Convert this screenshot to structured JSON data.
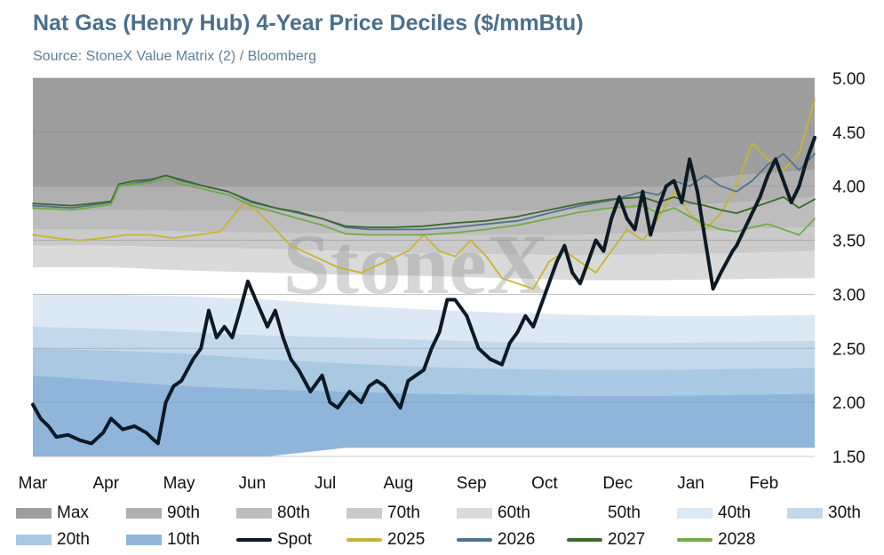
{
  "title": "Nat Gas (Henry Hub) 4-Year Price Deciles ($/mmBtu)",
  "subtitle": "Source: StoneX Value Matrix (2) / Bloomberg",
  "watermark": "StoneX",
  "chart_data": {
    "type": "area",
    "title": "Nat Gas (Henry Hub) 4-Year Price Deciles ($/mmBtu)",
    "subtitle": "Source: StoneX Value Matrix (2) / Bloomberg",
    "x_labels": [
      "Mar",
      "Apr",
      "May",
      "Jun",
      "Jul",
      "Aug",
      "Sep",
      "Oct",
      "Dec",
      "Jan",
      "Feb"
    ],
    "y_ticks": [
      "5.00",
      "4.50",
      "4.00",
      "3.50",
      "3.00",
      "2.50",
      "2.00",
      "1.50"
    ],
    "ylim": [
      1.5,
      5.0
    ],
    "y_axis_side": "right",
    "grid": true,
    "legend_position": "bottom",
    "t": [
      0,
      0.1,
      0.2,
      0.3,
      0.4,
      0.5,
      0.6,
      0.7,
      0.8,
      0.9,
      1.0
    ],
    "bands": [
      {
        "name": "Max",
        "color": "#9e9e9e",
        "upper": [
          5.0,
          5.0,
          5.0,
          5.0,
          5.0,
          5.0,
          5.0,
          5.0,
          5.0,
          5.0,
          5.0
        ],
        "lower": [
          4.0,
          4.0,
          4.0,
          4.0,
          4.0,
          4.0,
          4.0,
          4.0,
          4.0,
          4.1,
          4.15
        ]
      },
      {
        "name": "90th",
        "color": "#b0b0b0",
        "upper": [
          4.0,
          4.0,
          4.0,
          4.0,
          4.0,
          4.0,
          4.0,
          4.0,
          4.0,
          4.1,
          4.15
        ],
        "lower": [
          3.78,
          3.78,
          3.77,
          3.77,
          3.76,
          3.76,
          3.77,
          3.78,
          3.8,
          3.85,
          3.9
        ]
      },
      {
        "name": "80th",
        "color": "#bdbdbd",
        "upper": [
          3.78,
          3.78,
          3.77,
          3.77,
          3.76,
          3.76,
          3.77,
          3.78,
          3.8,
          3.85,
          3.9
        ],
        "lower": [
          3.6,
          3.6,
          3.58,
          3.57,
          3.56,
          3.55,
          3.55,
          3.55,
          3.57,
          3.6,
          3.62
        ]
      },
      {
        "name": "70th",
        "color": "#cacaca",
        "upper": [
          3.6,
          3.6,
          3.58,
          3.57,
          3.56,
          3.55,
          3.55,
          3.55,
          3.57,
          3.6,
          3.62
        ],
        "lower": [
          3.45,
          3.45,
          3.43,
          3.42,
          3.4,
          3.38,
          3.37,
          3.36,
          3.37,
          3.38,
          3.4
        ]
      },
      {
        "name": "60th",
        "color": "#dadada",
        "upper": [
          3.45,
          3.45,
          3.43,
          3.42,
          3.4,
          3.38,
          3.37,
          3.36,
          3.37,
          3.38,
          3.4
        ],
        "lower": [
          3.25,
          3.25,
          3.22,
          3.2,
          3.18,
          3.17,
          3.15,
          3.13,
          3.13,
          3.14,
          3.15
        ]
      },
      {
        "name": "50th",
        "color": "#ffffff",
        "upper": [
          3.25,
          3.25,
          3.22,
          3.2,
          3.18,
          3.17,
          3.15,
          3.13,
          3.13,
          3.14,
          3.15
        ],
        "lower": [
          3.0,
          3.0,
          2.98,
          2.95,
          2.9,
          2.86,
          2.83,
          2.81,
          2.8,
          2.8,
          2.81
        ]
      },
      {
        "name": "40th",
        "color": "#dce8f3",
        "upper": [
          3.0,
          3.0,
          2.98,
          2.95,
          2.9,
          2.86,
          2.83,
          2.81,
          2.8,
          2.8,
          2.81
        ],
        "lower": [
          2.7,
          2.68,
          2.65,
          2.62,
          2.6,
          2.58,
          2.56,
          2.55,
          2.55,
          2.56,
          2.57
        ]
      },
      {
        "name": "30th",
        "color": "#c3d8ea",
        "upper": [
          2.7,
          2.68,
          2.65,
          2.62,
          2.6,
          2.58,
          2.56,
          2.55,
          2.55,
          2.56,
          2.57
        ],
        "lower": [
          2.5,
          2.48,
          2.45,
          2.4,
          2.36,
          2.33,
          2.31,
          2.3,
          2.3,
          2.31,
          2.32
        ]
      },
      {
        "name": "20th",
        "color": "#a9c8e2",
        "upper": [
          2.5,
          2.48,
          2.45,
          2.4,
          2.36,
          2.33,
          2.31,
          2.3,
          2.3,
          2.31,
          2.32
        ],
        "lower": [
          2.25,
          2.2,
          2.15,
          2.12,
          2.1,
          2.08,
          2.07,
          2.06,
          2.06,
          2.07,
          2.08
        ]
      },
      {
        "name": "10th",
        "color": "#8fb6da",
        "upper": [
          2.25,
          2.2,
          2.15,
          2.12,
          2.1,
          2.08,
          2.07,
          2.06,
          2.06,
          2.07,
          2.08
        ],
        "lower": [
          1.5,
          1.5,
          1.5,
          1.5,
          1.58,
          1.58,
          1.58,
          1.58,
          1.58,
          1.58,
          1.58
        ]
      }
    ],
    "series": [
      {
        "name": "Spot",
        "color": "#0d1a26",
        "width": 4,
        "x": [
          0,
          0.01,
          0.02,
          0.03,
          0.045,
          0.06,
          0.075,
          0.09,
          0.1,
          0.115,
          0.13,
          0.145,
          0.155,
          0.16,
          0.17,
          0.18,
          0.19,
          0.205,
          0.215,
          0.225,
          0.235,
          0.245,
          0.255,
          0.265,
          0.275,
          0.285,
          0.3,
          0.31,
          0.32,
          0.33,
          0.34,
          0.355,
          0.37,
          0.38,
          0.39,
          0.405,
          0.42,
          0.43,
          0.44,
          0.45,
          0.46,
          0.47,
          0.48,
          0.5,
          0.51,
          0.52,
          0.53,
          0.54,
          0.555,
          0.57,
          0.585,
          0.6,
          0.61,
          0.62,
          0.63,
          0.64,
          0.65,
          0.66,
          0.67,
          0.68,
          0.69,
          0.7,
          0.71,
          0.72,
          0.73,
          0.74,
          0.75,
          0.76,
          0.77,
          0.78,
          0.79,
          0.8,
          0.81,
          0.82,
          0.83,
          0.84,
          0.85,
          0.86,
          0.87,
          0.88,
          0.895,
          0.9,
          0.91,
          0.92,
          0.93,
          0.94,
          0.95,
          0.96,
          0.97,
          0.98,
          0.99,
          1.0
        ],
        "y": [
          1.98,
          1.85,
          1.78,
          1.68,
          1.7,
          1.65,
          1.62,
          1.72,
          1.85,
          1.75,
          1.78,
          1.72,
          1.65,
          1.62,
          2.0,
          2.15,
          2.2,
          2.4,
          2.5,
          2.85,
          2.6,
          2.7,
          2.6,
          2.85,
          3.12,
          2.95,
          2.7,
          2.85,
          2.6,
          2.4,
          2.3,
          2.1,
          2.25,
          2.0,
          1.95,
          2.1,
          2.0,
          2.15,
          2.2,
          2.15,
          2.05,
          1.95,
          2.2,
          2.3,
          2.5,
          2.65,
          2.95,
          2.95,
          2.8,
          2.5,
          2.4,
          2.35,
          2.55,
          2.65,
          2.8,
          2.7,
          2.9,
          3.1,
          3.3,
          3.45,
          3.2,
          3.1,
          3.3,
          3.5,
          3.4,
          3.7,
          3.9,
          3.7,
          3.6,
          3.95,
          3.55,
          3.8,
          4.0,
          4.05,
          3.85,
          4.25,
          3.95,
          3.5,
          3.05,
          3.2,
          3.4,
          3.45,
          3.6,
          3.75,
          3.9,
          4.1,
          4.25,
          4.05,
          3.85,
          4.0,
          4.25,
          4.45
        ]
      },
      {
        "name": "2025",
        "color": "#c8b42e",
        "width": 1.8,
        "x": [
          0,
          0.03,
          0.06,
          0.09,
          0.12,
          0.15,
          0.18,
          0.21,
          0.24,
          0.27,
          0.29,
          0.31,
          0.33,
          0.36,
          0.39,
          0.42,
          0.45,
          0.48,
          0.5,
          0.52,
          0.54,
          0.56,
          0.58,
          0.6,
          0.62,
          0.64,
          0.66,
          0.68,
          0.7,
          0.72,
          0.74,
          0.76,
          0.78,
          0.8,
          0.82,
          0.84,
          0.86,
          0.88,
          0.9,
          0.92,
          0.94,
          0.96,
          0.98,
          1.0
        ],
        "y": [
          3.55,
          3.52,
          3.5,
          3.52,
          3.55,
          3.55,
          3.52,
          3.55,
          3.58,
          3.85,
          3.75,
          3.6,
          3.45,
          3.35,
          3.25,
          3.2,
          3.3,
          3.4,
          3.55,
          3.4,
          3.35,
          3.5,
          3.35,
          3.15,
          3.1,
          3.05,
          3.3,
          3.4,
          3.3,
          3.2,
          3.4,
          3.6,
          3.5,
          3.7,
          3.95,
          3.75,
          3.6,
          3.75,
          4.0,
          4.4,
          4.25,
          4.15,
          4.3,
          4.8
        ]
      },
      {
        "name": "2026",
        "color": "#4d7390",
        "width": 1.8,
        "x": [
          0,
          0.05,
          0.1,
          0.11,
          0.13,
          0.15,
          0.17,
          0.19,
          0.22,
          0.25,
          0.28,
          0.31,
          0.34,
          0.37,
          0.4,
          0.43,
          0.46,
          0.5,
          0.54,
          0.58,
          0.62,
          0.66,
          0.7,
          0.74,
          0.78,
          0.8,
          0.82,
          0.84,
          0.86,
          0.88,
          0.9,
          0.92,
          0.94,
          0.96,
          0.98,
          1.0
        ],
        "y": [
          3.82,
          3.8,
          3.85,
          4.0,
          4.03,
          4.05,
          4.1,
          4.05,
          4.0,
          3.95,
          3.85,
          3.8,
          3.75,
          3.7,
          3.62,
          3.6,
          3.6,
          3.6,
          3.62,
          3.65,
          3.68,
          3.75,
          3.82,
          3.87,
          3.95,
          3.92,
          4.05,
          4.0,
          4.1,
          4.0,
          3.95,
          4.05,
          4.2,
          4.3,
          4.15,
          4.3
        ]
      },
      {
        "name": "2027",
        "color": "#3c6a2a",
        "width": 1.8,
        "x": [
          0,
          0.05,
          0.1,
          0.11,
          0.13,
          0.15,
          0.17,
          0.19,
          0.22,
          0.25,
          0.28,
          0.31,
          0.34,
          0.37,
          0.4,
          0.43,
          0.46,
          0.5,
          0.54,
          0.58,
          0.62,
          0.66,
          0.7,
          0.74,
          0.78,
          0.8,
          0.82,
          0.84,
          0.86,
          0.88,
          0.9,
          0.92,
          0.94,
          0.96,
          0.98,
          1.0
        ],
        "y": [
          3.84,
          3.82,
          3.86,
          4.02,
          4.05,
          4.06,
          4.1,
          4.06,
          4.0,
          3.95,
          3.86,
          3.8,
          3.76,
          3.7,
          3.63,
          3.62,
          3.62,
          3.63,
          3.66,
          3.68,
          3.72,
          3.78,
          3.84,
          3.88,
          3.9,
          3.85,
          3.9,
          3.85,
          3.82,
          3.78,
          3.75,
          3.8,
          3.85,
          3.9,
          3.8,
          3.88
        ]
      },
      {
        "name": "2028",
        "color": "#6fac45",
        "width": 1.8,
        "x": [
          0,
          0.05,
          0.1,
          0.11,
          0.13,
          0.15,
          0.17,
          0.19,
          0.22,
          0.25,
          0.28,
          0.31,
          0.34,
          0.37,
          0.4,
          0.43,
          0.46,
          0.5,
          0.54,
          0.58,
          0.62,
          0.66,
          0.7,
          0.74,
          0.78,
          0.8,
          0.82,
          0.84,
          0.86,
          0.88,
          0.9,
          0.92,
          0.94,
          0.96,
          0.98,
          1.0
        ],
        "y": [
          3.8,
          3.78,
          3.83,
          4.0,
          4.02,
          4.03,
          4.07,
          4.02,
          3.97,
          3.92,
          3.82,
          3.76,
          3.7,
          3.64,
          3.56,
          3.55,
          3.55,
          3.55,
          3.57,
          3.6,
          3.64,
          3.7,
          3.76,
          3.8,
          3.82,
          3.75,
          3.8,
          3.72,
          3.65,
          3.6,
          3.58,
          3.62,
          3.65,
          3.6,
          3.55,
          3.7
        ]
      }
    ]
  },
  "legend": [
    {
      "label": "Max",
      "color": "#9e9e9e",
      "kind": "area"
    },
    {
      "label": "90th",
      "color": "#b0b0b0",
      "kind": "area"
    },
    {
      "label": "80th",
      "color": "#bdbdbd",
      "kind": "area"
    },
    {
      "label": "70th",
      "color": "#cacaca",
      "kind": "area"
    },
    {
      "label": "60th",
      "color": "#dadada",
      "kind": "area"
    },
    {
      "label": "50th",
      "color": "#ffffff",
      "kind": "area"
    },
    {
      "label": "40th",
      "color": "#dce8f3",
      "kind": "area"
    },
    {
      "label": "30th",
      "color": "#c3d8ea",
      "kind": "area"
    },
    {
      "label": "20th",
      "color": "#a9c8e2",
      "kind": "area"
    },
    {
      "label": "10th",
      "color": "#8fb6da",
      "kind": "area"
    },
    {
      "label": "Spot",
      "color": "#0d1a26",
      "kind": "line"
    },
    {
      "label": "2025",
      "color": "#c8b42e",
      "kind": "line"
    },
    {
      "label": "2026",
      "color": "#4d7390",
      "kind": "line"
    },
    {
      "label": "2027",
      "color": "#3c6a2a",
      "kind": "line"
    },
    {
      "label": "2028",
      "color": "#6fac45",
      "kind": "line"
    }
  ]
}
